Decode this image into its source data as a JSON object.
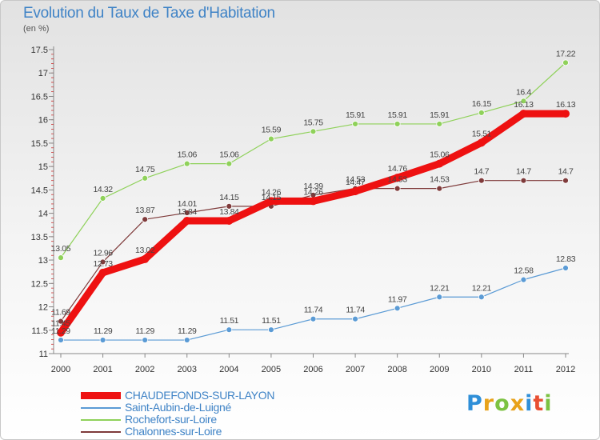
{
  "title": "Evolution du Taux de Taxe d'Habitation",
  "units": "(en %)",
  "logo": {
    "letters": [
      "P",
      "r",
      "o",
      "x",
      "i",
      "t",
      "i"
    ],
    "colors": [
      "#2f8fd8",
      "#e8a21a",
      "#7cc242",
      "#e8a21a",
      "#2f8fd8",
      "#e84f32",
      "#7cc242"
    ]
  },
  "chart_data": {
    "type": "line",
    "x": [
      "2000",
      "2001",
      "2002",
      "2003",
      "2004",
      "2005",
      "2006",
      "2007",
      "2008",
      "2009",
      "2010",
      "2011",
      "2012"
    ],
    "ylim": [
      11,
      17.5
    ],
    "yticks": [
      "11",
      "11.5",
      "12",
      "12.5",
      "13",
      "13.5",
      "14",
      "14.5",
      "15",
      "15.5",
      "16",
      "16.5",
      "17",
      "17.5"
    ],
    "grid": false,
    "legend_position": "bottom",
    "series": [
      {
        "name": "CHAUDEFONDS-SUR-LAYON",
        "color": "#ee1111",
        "emphasis": true,
        "values": [
          11.45,
          12.73,
          13.02,
          13.84,
          13.84,
          14.26,
          14.26,
          14.47,
          14.76,
          15.06,
          15.51,
          16.13,
          16.13
        ],
        "labels": [
          "11.45",
          "12.73",
          "13.02",
          "13.84",
          "13.84",
          "14.26",
          "14.26",
          "14.47",
          "14.76",
          "15.06",
          "15.51",
          "16.13",
          "16.13"
        ]
      },
      {
        "name": "Saint-Aubin-de-Luigné",
        "color": "#5b9bd5",
        "values": [
          11.29,
          11.29,
          11.29,
          11.29,
          11.51,
          11.51,
          11.74,
          11.74,
          11.97,
          12.21,
          12.21,
          12.58,
          12.83
        ],
        "labels": [
          "11.29",
          "11.29",
          "11.29",
          "11.29",
          "11.51",
          "11.51",
          "11.74",
          "11.74",
          "11.97",
          "12.21",
          "12.21",
          "12.58",
          "12.83"
        ]
      },
      {
        "name": "Rochefort-sur-Loire",
        "color": "#8fd15a",
        "values": [
          13.05,
          14.32,
          14.75,
          15.06,
          15.06,
          15.59,
          15.75,
          15.91,
          15.91,
          15.91,
          16.15,
          16.4,
          17.22
        ],
        "labels": [
          "13.05",
          "14.32",
          "14.75",
          "15.06",
          "15.06",
          "15.59",
          "15.75",
          "15.91",
          "15.91",
          "15.91",
          "16.15",
          "16.4",
          "17.22"
        ]
      },
      {
        "name": "Chalonnes-sur-Loire",
        "color": "#7f3b3b",
        "values": [
          11.69,
          12.96,
          13.87,
          14.01,
          14.15,
          14.15,
          14.39,
          14.53,
          14.53,
          14.53,
          14.7,
          14.7,
          14.7
        ],
        "labels": [
          "11.69",
          "12.96",
          "13.87",
          "14.01",
          "14.15",
          "14.15",
          "14.39",
          "14.53",
          "14.53",
          "14.53",
          "14.7",
          "14.7",
          "14.7"
        ]
      }
    ]
  }
}
